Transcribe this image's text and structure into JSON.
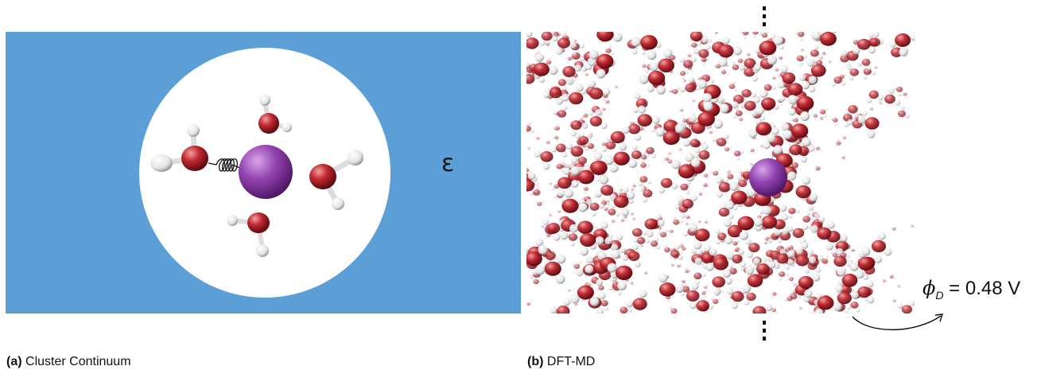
{
  "panel_a": {
    "caption_tag": "(a)",
    "caption_text": "Cluster Continuum",
    "dielectric_symbol": "ε"
  },
  "panel_b": {
    "caption_tag": "(b)",
    "caption_text": "DFT-MD",
    "potential_symbol": "ϕ",
    "potential_subscript": "D",
    "potential_value": "= 0.48 V"
  },
  "colors": {
    "continuum": "#5b9fd6",
    "oxygen": "#b8232b",
    "hydrogen": "#f2f2f2",
    "ion": "#8e3ea8"
  }
}
